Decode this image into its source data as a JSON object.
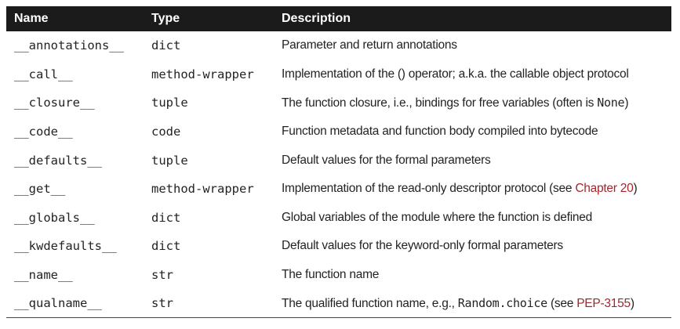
{
  "table": {
    "headers": [
      "Name",
      "Type",
      "Description"
    ],
    "rows": [
      {
        "name": "__annotations__",
        "type": "dict",
        "desc": "Parameter and return annotations"
      },
      {
        "name": "__call__",
        "type": "method-wrapper",
        "desc": "Implementation of the () operator; a.k.a. the callable object protocol"
      },
      {
        "name": "__closure__",
        "type": "tuple",
        "desc_pre": "The function closure, i.e., bindings for free variables (often is ",
        "desc_code": "None",
        "desc_post": ")"
      },
      {
        "name": "__code__",
        "type": "code",
        "desc": "Function metadata and function body compiled into bytecode"
      },
      {
        "name": "__defaults__",
        "type": "tuple",
        "desc": "Default values for the formal parameters"
      },
      {
        "name": "__get__",
        "type": "method-wrapper",
        "desc_pre": "Implementation of the read-only descriptor protocol (see ",
        "desc_link": "Chapter 20",
        "desc_post": ")"
      },
      {
        "name": "__globals__",
        "type": "dict",
        "desc": "Global variables of the module where the function is defined"
      },
      {
        "name": "__kwdefaults__",
        "type": "dict",
        "desc": "Default values for the keyword-only formal parameters"
      },
      {
        "name": "__name__",
        "type": "str",
        "desc": "The function name"
      },
      {
        "name": "__qualname__",
        "type": "str",
        "desc_pre": "The qualified function name, e.g., ",
        "desc_code": "Random.choice",
        "desc_mid": " (see ",
        "desc_link": "PEP-3155",
        "desc_post": ")"
      }
    ]
  },
  "colors": {
    "header_bg": "#1b1b1b",
    "header_text": "#ffffff",
    "link": "#a5262a"
  }
}
